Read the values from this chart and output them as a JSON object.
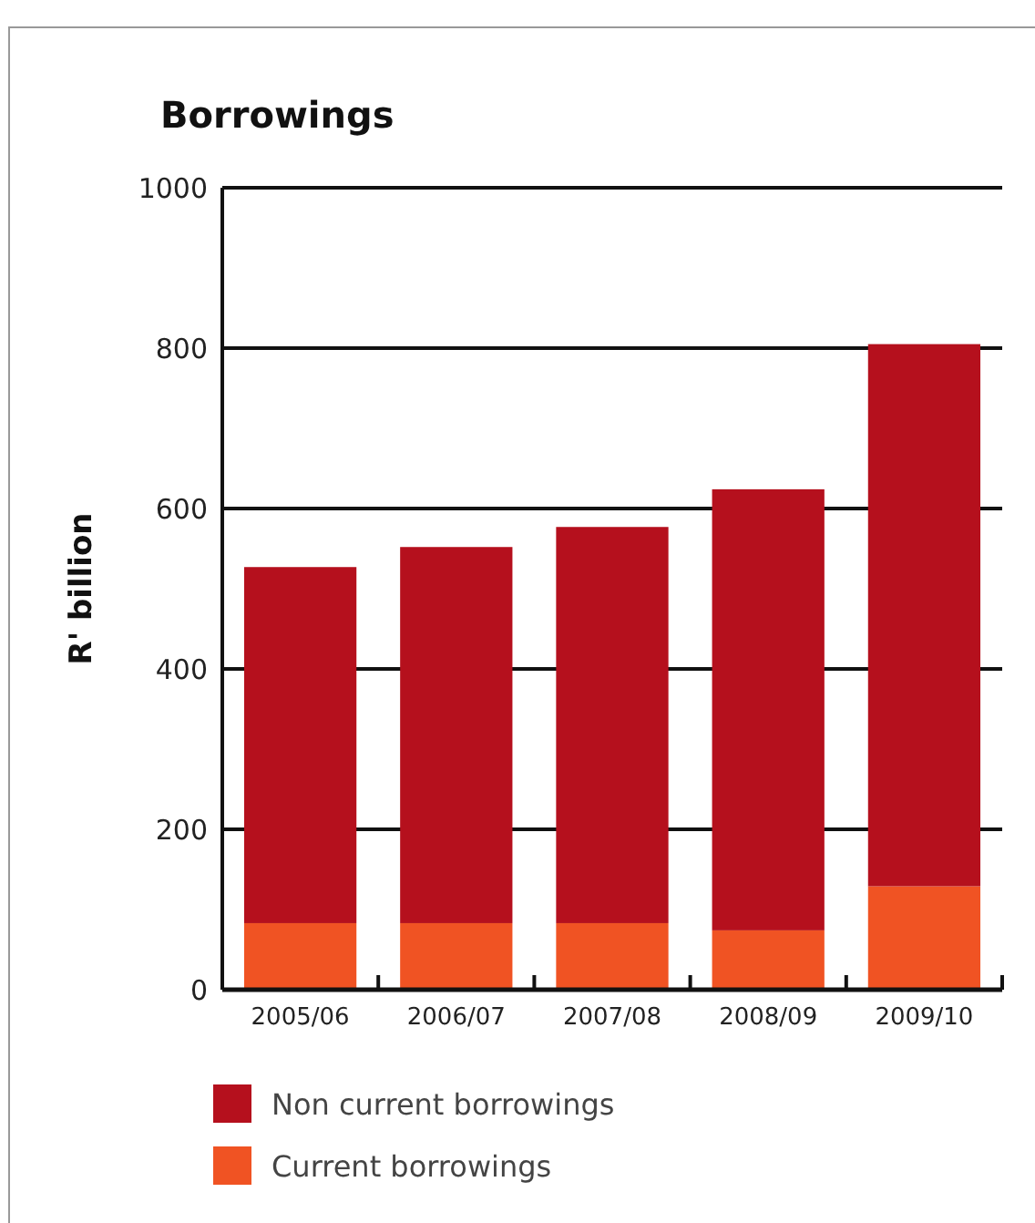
{
  "chart_data": {
    "type": "bar",
    "title": "Borrowings",
    "ylabel": "R' billion",
    "stacked": true,
    "categories": [
      "2005/06",
      "2006/07",
      "2007/08",
      "2008/09",
      "2009/10"
    ],
    "series": [
      {
        "name": "Current borrowings",
        "color": "#f05323",
        "values": [
          83,
          83,
          83,
          74,
          129
        ]
      },
      {
        "name": "Non current borrowings",
        "color": "#b5101d",
        "values": [
          444,
          469,
          494,
          550,
          676
        ]
      }
    ],
    "ylim": [
      0,
      1000
    ],
    "yticks": [
      0,
      200,
      400,
      600,
      800,
      1000
    ],
    "grid": "y",
    "legend": "bottom"
  }
}
